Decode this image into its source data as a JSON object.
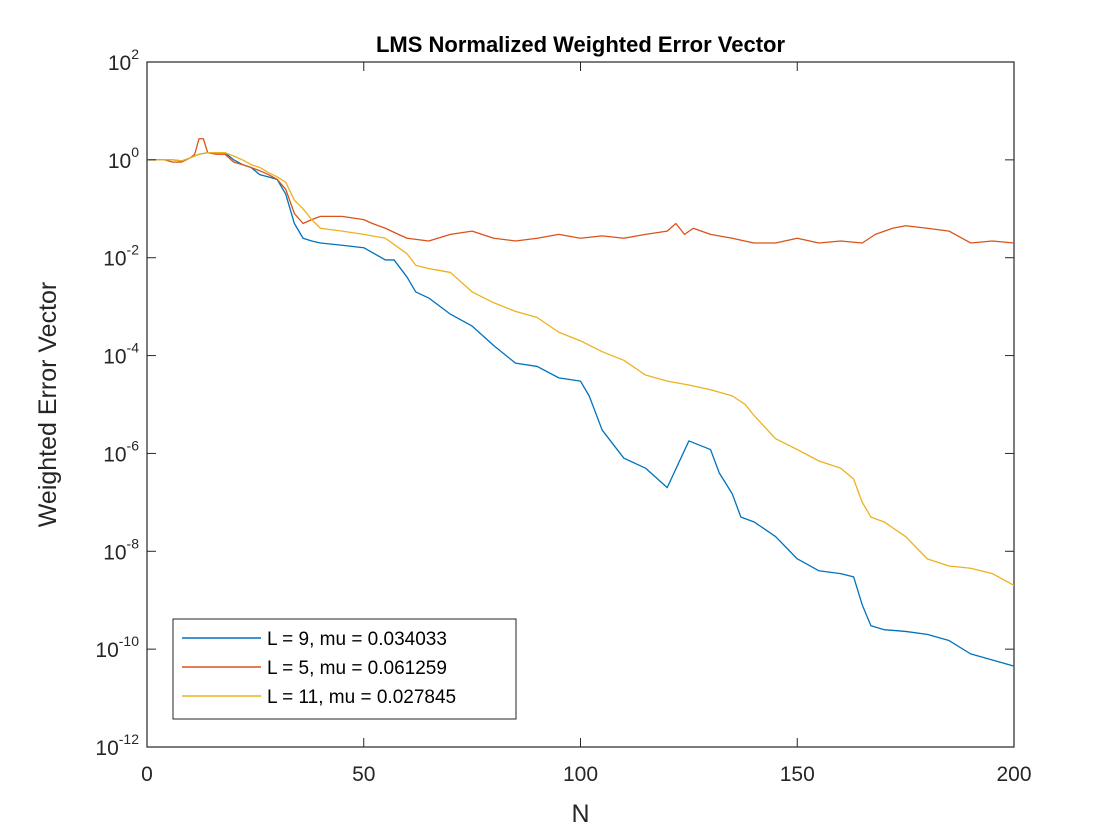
{
  "chart_data": {
    "type": "line",
    "title": "LMS Normalized Weighted Error Vector",
    "xlabel": "N",
    "ylabel": "Weighted Error Vector",
    "xlim": [
      0,
      200
    ],
    "ylim": [
      1e-12,
      100
    ],
    "yscale": "log",
    "grid": false,
    "legend_position": "bottom-left",
    "x_ticks": [
      {
        "value": 0,
        "label": "0"
      },
      {
        "value": 50,
        "label": "50"
      },
      {
        "value": 100,
        "label": "100"
      },
      {
        "value": 150,
        "label": "150"
      },
      {
        "value": 200,
        "label": "200"
      }
    ],
    "y_ticks": [
      {
        "value": 100,
        "base": "10",
        "exp": "2"
      },
      {
        "value": 1,
        "base": "10",
        "exp": "0"
      },
      {
        "value": 0.01,
        "base": "10",
        "exp": "-2"
      },
      {
        "value": 0.0001,
        "base": "10",
        "exp": "-4"
      },
      {
        "value": 1e-06,
        "base": "10",
        "exp": "-6"
      },
      {
        "value": 1e-08,
        "base": "10",
        "exp": "-8"
      },
      {
        "value": 1e-10,
        "base": "10",
        "exp": "-10"
      },
      {
        "value": 1e-12,
        "base": "10",
        "exp": "-12"
      }
    ],
    "series": [
      {
        "name": "L = 9, mu = 0.034033",
        "color": "#0072bd",
        "x": [
          0,
          2,
          4,
          6,
          8,
          10,
          12,
          14,
          16,
          18,
          20,
          22,
          24,
          26,
          28,
          30,
          32,
          34,
          36,
          38,
          40,
          45,
          50,
          55,
          57,
          60,
          62,
          65,
          70,
          75,
          80,
          85,
          90,
          95,
          100,
          102,
          105,
          110,
          115,
          120,
          125,
          130,
          132,
          135,
          137,
          140,
          145,
          150,
          155,
          160,
          163,
          165,
          167,
          170,
          175,
          180,
          185,
          190,
          195,
          200
        ],
        "values": [
          1,
          1,
          1,
          1,
          0.95,
          1.1,
          1.3,
          1.4,
          1.4,
          1.4,
          1,
          0.8,
          0.7,
          0.5,
          0.45,
          0.4,
          0.2,
          0.05,
          0.025,
          0.022,
          0.02,
          0.018,
          0.016,
          0.009,
          0.009,
          0.004,
          0.002,
          0.0015,
          0.0007,
          0.0004,
          0.00016,
          7e-05,
          6e-05,
          3.5e-05,
          3e-05,
          1.5e-05,
          3e-06,
          8e-07,
          5e-07,
          2e-07,
          1.8e-06,
          1.2e-06,
          4e-07,
          1.5e-07,
          5e-08,
          4e-08,
          2e-08,
          7e-09,
          4e-09,
          3.5e-09,
          3e-09,
          8e-10,
          3e-10,
          2.5e-10,
          2.3e-10,
          2e-10,
          1.5e-10,
          8e-11,
          6e-11,
          4.5e-11
        ]
      },
      {
        "name": "L = 5, mu = 0.061259",
        "color": "#d95319",
        "x": [
          0,
          2,
          4,
          6,
          8,
          10,
          11,
          12,
          13,
          14,
          16,
          18,
          20,
          22,
          24,
          26,
          28,
          30,
          32,
          34,
          36,
          38,
          40,
          45,
          50,
          52,
          55,
          58,
          60,
          65,
          70,
          75,
          80,
          85,
          90,
          95,
          100,
          105,
          110,
          115,
          120,
          122,
          124,
          126,
          130,
          135,
          140,
          145,
          150,
          155,
          160,
          165,
          168,
          172,
          175,
          180,
          185,
          190,
          195,
          200
        ],
        "values": [
          1,
          1,
          1,
          0.9,
          0.9,
          1.1,
          1.3,
          2.7,
          2.7,
          1.4,
          1.3,
          1.3,
          0.9,
          0.8,
          0.7,
          0.6,
          0.5,
          0.4,
          0.25,
          0.08,
          0.05,
          0.06,
          0.07,
          0.07,
          0.06,
          0.05,
          0.04,
          0.03,
          0.025,
          0.022,
          0.03,
          0.035,
          0.025,
          0.022,
          0.025,
          0.03,
          0.025,
          0.028,
          0.025,
          0.03,
          0.035,
          0.05,
          0.03,
          0.04,
          0.03,
          0.025,
          0.02,
          0.02,
          0.025,
          0.02,
          0.022,
          0.02,
          0.03,
          0.04,
          0.045,
          0.04,
          0.035,
          0.02,
          0.022,
          0.02
        ]
      },
      {
        "name": "L = 11, mu = 0.027845",
        "color": "#edb120",
        "x": [
          0,
          2,
          4,
          6,
          8,
          10,
          12,
          14,
          16,
          18,
          20,
          22,
          24,
          26,
          28,
          30,
          32,
          34,
          36,
          38,
          40,
          45,
          50,
          55,
          60,
          62,
          65,
          70,
          75,
          80,
          85,
          90,
          95,
          100,
          105,
          110,
          115,
          120,
          125,
          130,
          135,
          138,
          140,
          145,
          150,
          155,
          160,
          163,
          165,
          167,
          170,
          175,
          180,
          185,
          190,
          195,
          200
        ],
        "values": [
          1,
          1,
          1,
          1,
          0.95,
          1.1,
          1.3,
          1.4,
          1.4,
          1.4,
          1.2,
          1,
          0.8,
          0.7,
          0.55,
          0.45,
          0.35,
          0.15,
          0.1,
          0.06,
          0.04,
          0.035,
          0.03,
          0.025,
          0.012,
          0.007,
          0.006,
          0.005,
          0.002,
          0.0012,
          0.0008,
          0.0006,
          0.0003,
          0.0002,
          0.00012,
          8e-05,
          4e-05,
          3e-05,
          2.5e-05,
          2e-05,
          1.5e-05,
          1e-05,
          6e-06,
          2e-06,
          1.2e-06,
          7e-07,
          5e-07,
          3e-07,
          1e-07,
          5e-08,
          4e-08,
          2e-08,
          7e-09,
          5e-09,
          4.5e-09,
          3.5e-09,
          2e-09
        ]
      }
    ]
  }
}
